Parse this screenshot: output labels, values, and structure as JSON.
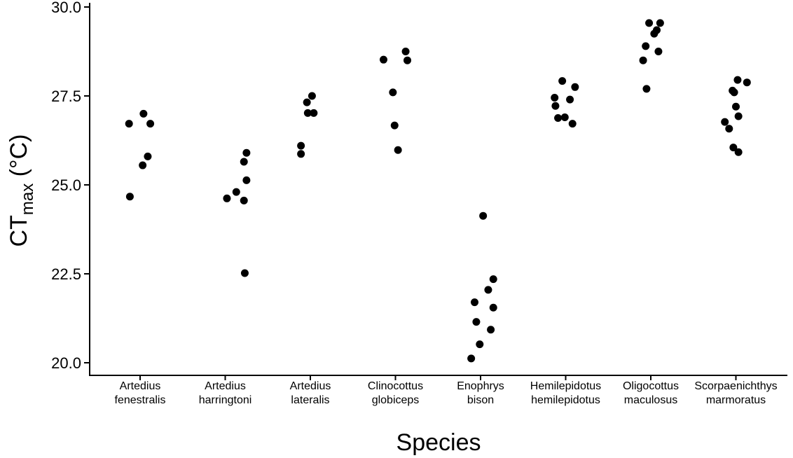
{
  "chart_data": {
    "type": "scatter",
    "title": "",
    "xlabel": "Species",
    "ylabel": {
      "main": "CT",
      "subscript": "max",
      "suffix": " (°C)"
    },
    "ylim": [
      19.8,
      30.0
    ],
    "yticks": [
      "20.0",
      "22.5",
      "25.0",
      "27.5",
      "30.0"
    ],
    "ytick_values": [
      20.0,
      22.5,
      25.0,
      27.5,
      30.0
    ],
    "grid": false,
    "legend": "none",
    "point_color": "#000000",
    "categories": [
      {
        "line1": "Artedius",
        "line2": "fenestralis"
      },
      {
        "line1": "Artedius",
        "line2": "harringtoni"
      },
      {
        "line1": "Artedius",
        "line2": "lateralis"
      },
      {
        "line1": "Clinocottus",
        "line2": "globiceps"
      },
      {
        "line1": "Enophrys",
        "line2": "bison"
      },
      {
        "line1": "Hemilepidotus",
        "line2": "hemilepidotus"
      },
      {
        "line1": "Oligocottus",
        "line2": "maculosus"
      },
      {
        "line1": "Scorpaenichthys",
        "line2": "marmoratus"
      }
    ],
    "points": [
      {
        "cat": 0,
        "jitter": -0.13,
        "y": 26.72
      },
      {
        "cat": 0,
        "jitter": 0.04,
        "y": 27.0
      },
      {
        "cat": 0,
        "jitter": 0.12,
        "y": 26.72
      },
      {
        "cat": 0,
        "jitter": 0.09,
        "y": 25.8
      },
      {
        "cat": 0,
        "jitter": 0.03,
        "y": 25.55
      },
      {
        "cat": 0,
        "jitter": -0.12,
        "y": 24.67
      },
      {
        "cat": 1,
        "jitter": 0.25,
        "y": 25.9
      },
      {
        "cat": 1,
        "jitter": 0.22,
        "y": 25.65
      },
      {
        "cat": 1,
        "jitter": 0.25,
        "y": 25.13
      },
      {
        "cat": 1,
        "jitter": 0.13,
        "y": 24.8
      },
      {
        "cat": 1,
        "jitter": 0.02,
        "y": 24.62
      },
      {
        "cat": 1,
        "jitter": 0.22,
        "y": 24.56
      },
      {
        "cat": 1,
        "jitter": 0.23,
        "y": 22.52
      },
      {
        "cat": 2,
        "jitter": 0.02,
        "y": 27.5
      },
      {
        "cat": 2,
        "jitter": -0.04,
        "y": 27.32
      },
      {
        "cat": 2,
        "jitter": -0.03,
        "y": 27.02
      },
      {
        "cat": 2,
        "jitter": 0.04,
        "y": 27.02
      },
      {
        "cat": 2,
        "jitter": -0.11,
        "y": 26.1
      },
      {
        "cat": 2,
        "jitter": -0.11,
        "y": 25.87
      },
      {
        "cat": 3,
        "jitter": -0.14,
        "y": 28.52
      },
      {
        "cat": 3,
        "jitter": 0.12,
        "y": 28.75
      },
      {
        "cat": 3,
        "jitter": 0.14,
        "y": 28.5
      },
      {
        "cat": 3,
        "jitter": -0.03,
        "y": 27.6
      },
      {
        "cat": 3,
        "jitter": -0.01,
        "y": 26.67
      },
      {
        "cat": 3,
        "jitter": 0.03,
        "y": 25.98
      },
      {
        "cat": 4,
        "jitter": 0.03,
        "y": 24.13
      },
      {
        "cat": 4,
        "jitter": 0.15,
        "y": 22.35
      },
      {
        "cat": 4,
        "jitter": 0.09,
        "y": 22.05
      },
      {
        "cat": 4,
        "jitter": -0.07,
        "y": 21.7
      },
      {
        "cat": 4,
        "jitter": 0.15,
        "y": 21.55
      },
      {
        "cat": 4,
        "jitter": -0.05,
        "y": 21.15
      },
      {
        "cat": 4,
        "jitter": 0.12,
        "y": 20.93
      },
      {
        "cat": 4,
        "jitter": -0.01,
        "y": 20.52
      },
      {
        "cat": 4,
        "jitter": -0.11,
        "y": 20.12
      },
      {
        "cat": 5,
        "jitter": -0.04,
        "y": 27.92
      },
      {
        "cat": 5,
        "jitter": 0.11,
        "y": 27.75
      },
      {
        "cat": 5,
        "jitter": -0.13,
        "y": 27.45
      },
      {
        "cat": 5,
        "jitter": 0.05,
        "y": 27.4
      },
      {
        "cat": 5,
        "jitter": -0.12,
        "y": 27.22
      },
      {
        "cat": 5,
        "jitter": -0.09,
        "y": 26.88
      },
      {
        "cat": 5,
        "jitter": -0.01,
        "y": 26.9
      },
      {
        "cat": 5,
        "jitter": 0.08,
        "y": 26.72
      },
      {
        "cat": 6,
        "jitter": -0.02,
        "y": 29.55
      },
      {
        "cat": 6,
        "jitter": 0.11,
        "y": 29.55
      },
      {
        "cat": 6,
        "jitter": 0.07,
        "y": 29.35
      },
      {
        "cat": 6,
        "jitter": 0.04,
        "y": 29.25
      },
      {
        "cat": 6,
        "jitter": -0.06,
        "y": 28.9
      },
      {
        "cat": 6,
        "jitter": 0.09,
        "y": 28.75
      },
      {
        "cat": 6,
        "jitter": -0.09,
        "y": 28.5
      },
      {
        "cat": 6,
        "jitter": -0.05,
        "y": 27.7
      },
      {
        "cat": 7,
        "jitter": 0.02,
        "y": 27.95
      },
      {
        "cat": 7,
        "jitter": 0.13,
        "y": 27.88
      },
      {
        "cat": 7,
        "jitter": -0.04,
        "y": 27.65
      },
      {
        "cat": 7,
        "jitter": -0.02,
        "y": 27.6
      },
      {
        "cat": 7,
        "jitter": 0.0,
        "y": 27.2
      },
      {
        "cat": 7,
        "jitter": 0.03,
        "y": 26.93
      },
      {
        "cat": 7,
        "jitter": -0.13,
        "y": 26.77
      },
      {
        "cat": 7,
        "jitter": -0.08,
        "y": 26.58
      },
      {
        "cat": 7,
        "jitter": -0.03,
        "y": 26.05
      },
      {
        "cat": 7,
        "jitter": 0.03,
        "y": 25.92
      }
    ]
  }
}
